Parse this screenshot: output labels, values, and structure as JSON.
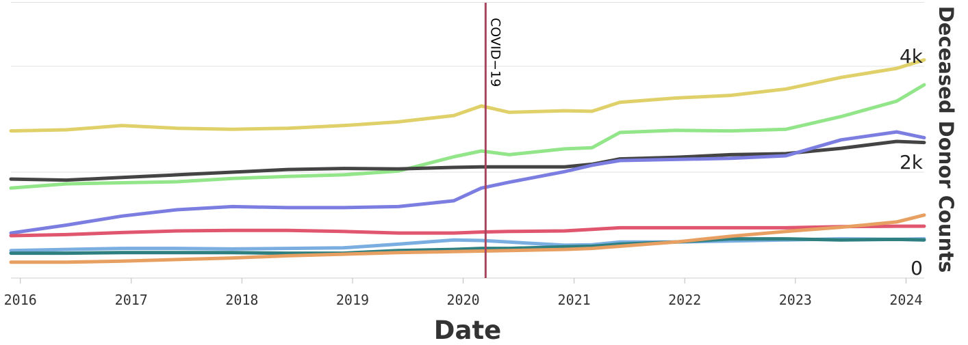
{
  "chart_data": {
    "type": "line",
    "xlabel": "Date",
    "ylabel": "Deceased Donor Counts",
    "xlim": [
      "2015-12-01",
      "2024-03-01"
    ],
    "ylim": [
      0,
      5200
    ],
    "x_ticks": [
      "2016",
      "2017",
      "2018",
      "2019",
      "2020",
      "2021",
      "2022",
      "2023",
      "2024"
    ],
    "y_ticks": [
      {
        "value": 0,
        "label": "0"
      },
      {
        "value": 2000,
        "label": "2k"
      },
      {
        "value": 4000,
        "label": "4k"
      }
    ],
    "y_axis_side": "right",
    "grid": true,
    "annotations": [
      {
        "x": "2020-03-15",
        "label": "COVID−19",
        "color": "#a8455e"
      }
    ],
    "x": [
      "2015-12-01",
      "2016-06-01",
      "2016-12-01",
      "2017-06-01",
      "2017-12-01",
      "2018-06-01",
      "2018-12-01",
      "2019-06-01",
      "2019-12-01",
      "2020-03-01",
      "2020-06-01",
      "2020-12-01",
      "2021-03-01",
      "2021-06-01",
      "2021-12-01",
      "2022-06-01",
      "2022-12-01",
      "2023-06-01",
      "2023-12-01",
      "2024-03-01"
    ],
    "series": [
      {
        "color": "#e0d06a",
        "values": [
          2780,
          2800,
          2880,
          2830,
          2810,
          2830,
          2880,
          2950,
          3070,
          3250,
          3130,
          3160,
          3150,
          3320,
          3400,
          3450,
          3570,
          3790,
          3960,
          4120
        ]
      },
      {
        "color": "#93e58a",
        "values": [
          1700,
          1780,
          1800,
          1820,
          1880,
          1920,
          1950,
          2020,
          2290,
          2400,
          2330,
          2440,
          2460,
          2750,
          2790,
          2780,
          2810,
          3050,
          3340,
          3650
        ]
      },
      {
        "color": "#444444",
        "values": [
          1870,
          1850,
          1900,
          1950,
          2000,
          2050,
          2070,
          2060,
          2090,
          2100,
          2100,
          2100,
          2150,
          2250,
          2280,
          2330,
          2350,
          2450,
          2580,
          2560
        ]
      },
      {
        "color": "#7b7ee0",
        "values": [
          850,
          1000,
          1170,
          1290,
          1350,
          1330,
          1330,
          1350,
          1460,
          1700,
          1810,
          2010,
          2130,
          2220,
          2240,
          2260,
          2310,
          2610,
          2760,
          2650
        ]
      },
      {
        "color": "#e0566e",
        "values": [
          800,
          820,
          860,
          890,
          900,
          900,
          880,
          850,
          850,
          870,
          880,
          890,
          920,
          950,
          950,
          950,
          950,
          970,
          980,
          980
        ]
      },
      {
        "color": "#7aaee0",
        "values": [
          520,
          540,
          560,
          560,
          550,
          560,
          570,
          640,
          720,
          710,
          680,
          620,
          630,
          680,
          680,
          700,
          720,
          740,
          730,
          740
        ]
      },
      {
        "color": "#2e8080",
        "values": [
          470,
          470,
          480,
          480,
          480,
          470,
          470,
          520,
          540,
          560,
          560,
          590,
          600,
          640,
          680,
          740,
          740,
          720,
          730,
          720
        ]
      },
      {
        "color": "#e8a062",
        "values": [
          300,
          300,
          320,
          350,
          380,
          420,
          450,
          480,
          500,
          510,
          520,
          540,
          560,
          600,
          680,
          790,
          880,
          960,
          1060,
          1190
        ]
      }
    ]
  }
}
